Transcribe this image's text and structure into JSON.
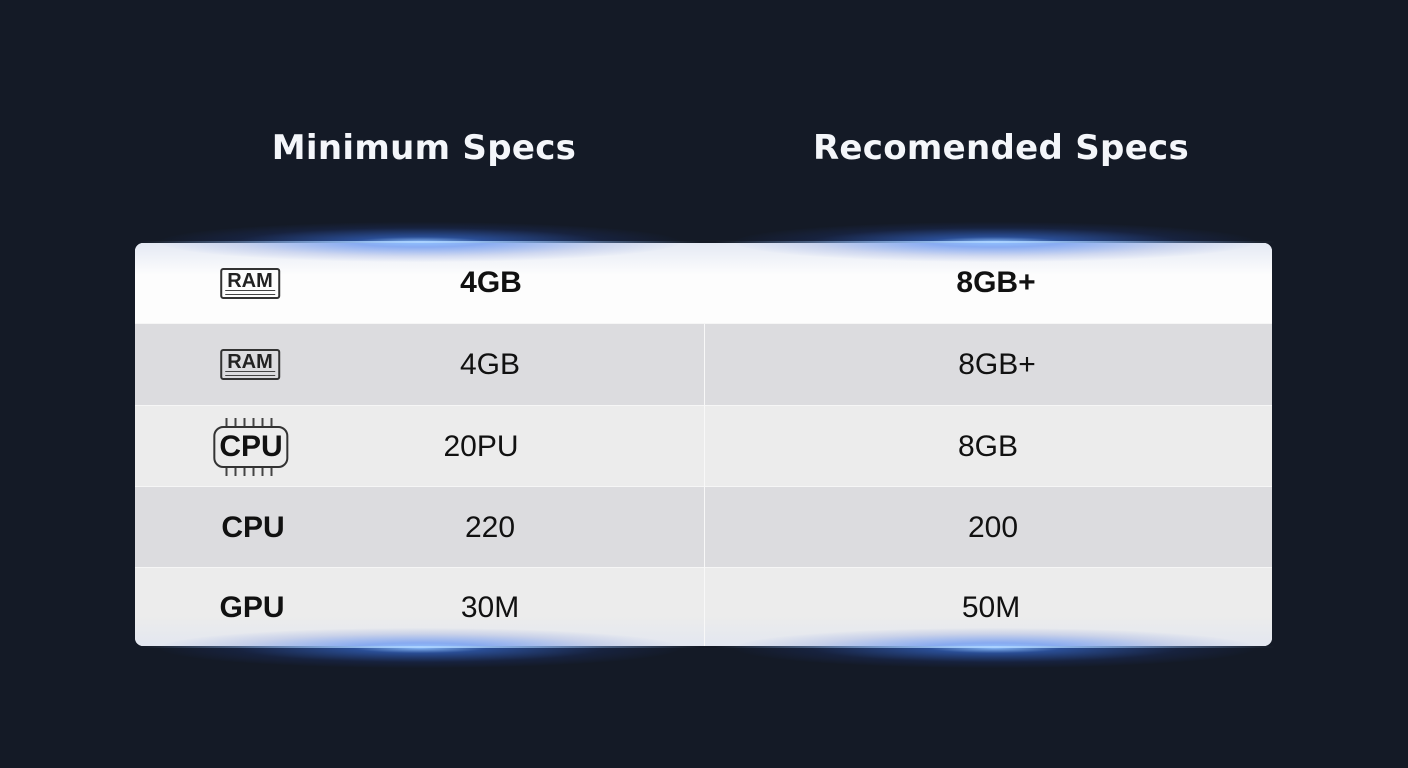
{
  "headers": {
    "minimum": "Minimum Specs",
    "recommended": "Recomended Specs"
  },
  "accent_glow": "#7fb2ff",
  "rows": [
    {
      "label": "RAM",
      "icon": "ram-icon",
      "minimum": "4GB",
      "recommended": "8GB+"
    },
    {
      "label": "RAM",
      "icon": "ram-icon",
      "minimum": "4GB",
      "recommended": "8GB+"
    },
    {
      "label": "CPU",
      "icon": "cpu-chip-icon",
      "minimum": "20PU",
      "recommended": "8GB"
    },
    {
      "label": "CPU",
      "icon": "none",
      "minimum": "220",
      "recommended": "200"
    },
    {
      "label": "GPU",
      "icon": "none",
      "minimum": "30M",
      "recommended": "50M"
    }
  ]
}
